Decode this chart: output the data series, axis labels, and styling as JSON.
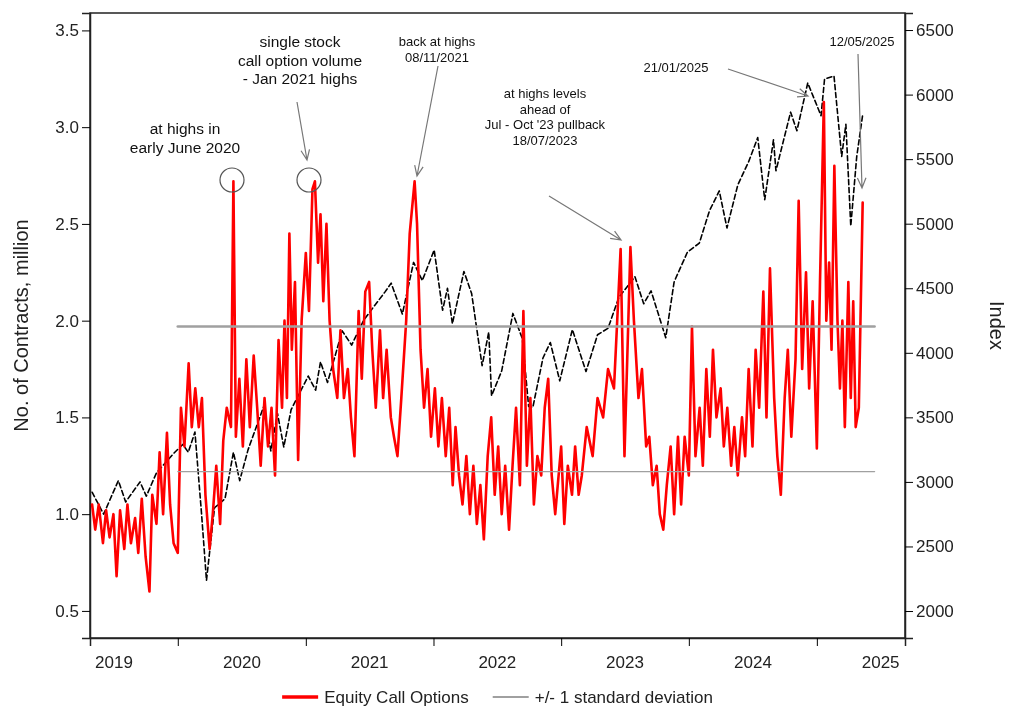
{
  "chart_data": {
    "type": "line",
    "ylabel": "No. of Contracts, million",
    "y2label": "Index",
    "xlim": [
      "2019-04-25",
      "2025-09-10"
    ],
    "xticks": [
      {
        "value": "2019-07-01",
        "label": "2019"
      },
      {
        "value": "2020-01-01",
        "label": null
      },
      {
        "value": "2020-07-01",
        "label": "2020"
      },
      {
        "value": "2021-01-01",
        "label": null
      },
      {
        "value": "2021-07-01",
        "label": "2021"
      },
      {
        "value": "2022-01-01",
        "label": null
      },
      {
        "value": "2022-07-01",
        "label": "2022"
      },
      {
        "value": "2023-01-01",
        "label": null
      },
      {
        "value": "2023-07-01",
        "label": "2023"
      },
      {
        "value": "2024-01-01",
        "label": null
      },
      {
        "value": "2024-07-01",
        "label": "2024"
      },
      {
        "value": "2025-01-01",
        "label": null
      },
      {
        "value": "2025-07-01",
        "label": "2025"
      }
    ],
    "ylim": [
      0.36,
      3.59
    ],
    "yticks": [
      0.5,
      {
        "value": 1,
        "label": "1.0"
      },
      1.5,
      {
        "value": 2,
        "label": "2.0"
      },
      2.5,
      {
        "value": 3,
        "label": "3.0"
      },
      3.5
    ],
    "y2lim": [
      1791,
      6632
    ],
    "y2ticks": [
      2000,
      2500,
      3000,
      3500,
      4000,
      4500,
      5000,
      5500,
      6000,
      6500
    ],
    "grid": false,
    "legend": "bottom",
    "series": [
      {
        "color": "#000000",
        "axis": "y2",
        "line_style": "dashed",
        "x": [
          "2019-05-01",
          "2019-06-03",
          "2019-07-15",
          "2019-08-05",
          "2019-09-15",
          "2019-10-03",
          "2019-11-01",
          "2019-12-20",
          "2020-01-15",
          "2020-01-31",
          "2020-02-19",
          "2020-03-09",
          "2020-03-23",
          "2020-04-15",
          "2020-05-15",
          "2020-06-08",
          "2020-06-26",
          "2020-07-20",
          "2020-09-02",
          "2020-09-23",
          "2020-10-12",
          "2020-10-30",
          "2020-11-20",
          "2021-01-08",
          "2021-01-29",
          "2021-02-12",
          "2021-03-04",
          "2021-04-15",
          "2021-05-12",
          "2021-06-15",
          "2021-07-15",
          "2021-08-15",
          "2021-09-02",
          "2021-10-04",
          "2021-11-05",
          "2021-11-30",
          "2022-01-03",
          "2022-01-27",
          "2022-02-10",
          "2022-02-24",
          "2022-03-29",
          "2022-04-20",
          "2022-05-20",
          "2022-06-08",
          "2022-06-16",
          "2022-07-15",
          "2022-08-16",
          "2022-09-12",
          "2022-09-30",
          "2022-10-12",
          "2022-11-10",
          "2022-12-01",
          "2022-12-28",
          "2023-02-02",
          "2023-03-13",
          "2023-04-15",
          "2023-05-15",
          "2023-06-15",
          "2023-07-31",
          "2023-08-25",
          "2023-09-15",
          "2023-10-27",
          "2023-11-20",
          "2023-12-28",
          "2024-01-31",
          "2024-02-29",
          "2024-03-28",
          "2024-04-19",
          "2024-05-20",
          "2024-06-20",
          "2024-07-16",
          "2024-08-05",
          "2024-08-30",
          "2024-09-06",
          "2024-10-18",
          "2024-11-05",
          "2024-12-06",
          "2025-01-13",
          "2025-01-23",
          "2025-02-19",
          "2025-03-13",
          "2025-03-25",
          "2025-04-08",
          "2025-04-25",
          "2025-05-12"
        ],
        "values": [
          2920,
          2750,
          3010,
          2845,
          3000,
          2890,
          3070,
          3220,
          3290,
          3230,
          3386,
          2750,
          2237,
          2800,
          2870,
          3230,
          3010,
          3250,
          3580,
          3240,
          3530,
          3270,
          3560,
          3820,
          3710,
          3930,
          3770,
          4170,
          4060,
          4250,
          4360,
          4470,
          4540,
          4300,
          4700,
          4560,
          4796,
          4330,
          4500,
          4225,
          4630,
          4460,
          3900,
          4160,
          3667,
          3860,
          4305,
          4110,
          3585,
          3577,
          3960,
          4080,
          3783,
          4180,
          3855,
          4140,
          4190,
          4430,
          4589,
          4380,
          4480,
          4117,
          4550,
          4780,
          4850,
          5100,
          5254,
          4967,
          5300,
          5480,
          5667,
          5186,
          5650,
          5410,
          5864,
          5720,
          6090,
          5836,
          6120,
          6144,
          5521,
          5770,
          4982,
          5520,
          5844
        ]
      },
      {
        "name": "Equity Call Options",
        "color": "#ff0000",
        "x": [
          "2019-05-01",
          "2019-05-10",
          "2019-05-20",
          "2019-06-01",
          "2019-06-10",
          "2019-06-20",
          "2019-07-01",
          "2019-07-10",
          "2019-07-20",
          "2019-08-01",
          "2019-08-10",
          "2019-08-20",
          "2019-09-01",
          "2019-09-10",
          "2019-09-20",
          "2019-10-01",
          "2019-10-12",
          "2019-10-20",
          "2019-11-01",
          "2019-11-10",
          "2019-11-20",
          "2019-12-01",
          "2019-12-10",
          "2019-12-20",
          "2020-01-01",
          "2020-01-10",
          "2020-01-20",
          "2020-02-01",
          "2020-02-10",
          "2020-02-20",
          "2020-03-01",
          "2020-03-10",
          "2020-03-20",
          "2020-04-01",
          "2020-04-10",
          "2020-04-20",
          "2020-05-01",
          "2020-05-10",
          "2020-05-20",
          "2020-06-01",
          "2020-06-08",
          "2020-06-15",
          "2020-06-25",
          "2020-07-05",
          "2020-07-15",
          "2020-07-25",
          "2020-08-05",
          "2020-08-15",
          "2020-08-25",
          "2020-09-05",
          "2020-09-15",
          "2020-09-25",
          "2020-10-05",
          "2020-10-15",
          "2020-10-25",
          "2020-11-01",
          "2020-11-08",
          "2020-11-15",
          "2020-11-22",
          "2020-12-01",
          "2020-12-10",
          "2020-12-20",
          "2021-01-01",
          "2021-01-10",
          "2021-01-20",
          "2021-01-27",
          "2021-02-05",
          "2021-02-12",
          "2021-02-20",
          "2021-03-01",
          "2021-03-10",
          "2021-03-20",
          "2021-04-01",
          "2021-04-10",
          "2021-04-20",
          "2021-05-01",
          "2021-05-10",
          "2021-05-20",
          "2021-06-01",
          "2021-06-10",
          "2021-06-20",
          "2021-07-01",
          "2021-07-10",
          "2021-07-20",
          "2021-08-01",
          "2021-08-10",
          "2021-08-20",
          "2021-09-01",
          "2021-09-10",
          "2021-09-20",
          "2021-10-01",
          "2021-10-15",
          "2021-10-25",
          "2021-11-08",
          "2021-11-15",
          "2021-11-25",
          "2021-12-05",
          "2021-12-15",
          "2021-12-25",
          "2022-01-05",
          "2022-01-15",
          "2022-01-25",
          "2022-02-05",
          "2022-02-15",
          "2022-02-25",
          "2022-03-05",
          "2022-03-15",
          "2022-03-25",
          "2022-04-05",
          "2022-04-15",
          "2022-04-25",
          "2022-05-05",
          "2022-05-15",
          "2022-05-25",
          "2022-06-05",
          "2022-06-15",
          "2022-06-25",
          "2022-07-05",
          "2022-07-15",
          "2022-07-25",
          "2022-08-05",
          "2022-08-15",
          "2022-08-25",
          "2022-09-05",
          "2022-09-15",
          "2022-09-25",
          "2022-10-05",
          "2022-10-15",
          "2022-10-25",
          "2022-11-05",
          "2022-11-15",
          "2022-11-25",
          "2022-12-05",
          "2022-12-15",
          "2023-01-01",
          "2023-01-10",
          "2023-01-20",
          "2023-02-01",
          "2023-02-10",
          "2023-02-20",
          "2023-03-01",
          "2023-03-15",
          "2023-04-01",
          "2023-04-15",
          "2023-05-01",
          "2023-05-15",
          "2023-06-01",
          "2023-06-20",
          "2023-07-01",
          "2023-07-18",
          "2023-07-28",
          "2023-08-10",
          "2023-08-20",
          "2023-09-01",
          "2023-09-10",
          "2023-09-20",
          "2023-10-01",
          "2023-10-10",
          "2023-10-20",
          "2023-10-30",
          "2023-11-10",
          "2023-11-20",
          "2023-12-01",
          "2023-12-10",
          "2023-12-20",
          "2024-01-01",
          "2024-01-10",
          "2024-01-20",
          "2024-02-01",
          "2024-02-10",
          "2024-02-20",
          "2024-03-01",
          "2024-03-10",
          "2024-03-20",
          "2024-04-01",
          "2024-04-10",
          "2024-04-20",
          "2024-05-01",
          "2024-05-10",
          "2024-05-20",
          "2024-06-01",
          "2024-06-10",
          "2024-06-20",
          "2024-07-01",
          "2024-07-10",
          "2024-07-20",
          "2024-08-01",
          "2024-08-10",
          "2024-08-20",
          "2024-09-01",
          "2024-09-10",
          "2024-09-20",
          "2024-10-01",
          "2024-10-10",
          "2024-10-20",
          "2024-11-01",
          "2024-11-10",
          "2024-11-20",
          "2024-12-01",
          "2024-12-10",
          "2024-12-20",
          "2025-01-01",
          "2025-01-10",
          "2025-01-21",
          "2025-01-28",
          "2025-02-05",
          "2025-02-12",
          "2025-02-20",
          "2025-03-01",
          "2025-03-08",
          "2025-03-15",
          "2025-03-22",
          "2025-04-01",
          "2025-04-08",
          "2025-04-15",
          "2025-04-22",
          "2025-05-01",
          "2025-05-12"
        ],
        "values": [
          1.05,
          0.92,
          1.05,
          0.85,
          1.02,
          0.88,
          1.0,
          0.68,
          1.02,
          0.82,
          1.05,
          0.85,
          0.98,
          0.8,
          1.08,
          0.78,
          0.6,
          1.1,
          0.95,
          1.32,
          1.0,
          1.42,
          1.05,
          0.85,
          0.8,
          1.55,
          1.35,
          1.78,
          1.45,
          1.65,
          1.45,
          1.6,
          1.1,
          0.82,
          1.0,
          1.25,
          0.95,
          1.38,
          1.55,
          1.45,
          2.72,
          1.4,
          1.7,
          1.35,
          1.8,
          1.45,
          1.82,
          1.55,
          1.25,
          1.6,
          1.35,
          1.55,
          1.2,
          1.9,
          1.55,
          2.0,
          1.6,
          2.45,
          1.85,
          2.2,
          1.28,
          2.0,
          2.35,
          2.05,
          2.68,
          2.72,
          2.3,
          2.55,
          2.1,
          2.5,
          2.0,
          1.75,
          1.6,
          1.95,
          1.6,
          1.75,
          1.5,
          1.3,
          2.05,
          1.7,
          2.15,
          2.2,
          1.85,
          1.55,
          1.95,
          1.6,
          1.85,
          1.5,
          1.4,
          1.3,
          1.6,
          2.0,
          2.45,
          2.72,
          2.5,
          1.85,
          1.55,
          1.75,
          1.4,
          1.65,
          1.35,
          1.6,
          1.3,
          1.55,
          1.15,
          1.45,
          1.2,
          1.05,
          1.3,
          1.0,
          1.25,
          0.95,
          1.15,
          0.87,
          1.3,
          1.5,
          1.1,
          1.35,
          1.0,
          1.25,
          0.92,
          1.25,
          1.55,
          1.15,
          2.05,
          1.25,
          1.6,
          1.05,
          1.3,
          1.2,
          1.55,
          1.7,
          1.2,
          1.0,
          1.35,
          0.95,
          1.25,
          1.1,
          1.35,
          1.1,
          1.2,
          1.45,
          1.3,
          1.6,
          1.5,
          1.75,
          1.65,
          2.37,
          1.3,
          2.38,
          2.0,
          1.6,
          1.75,
          1.35,
          1.4,
          1.15,
          1.25,
          1.0,
          0.92,
          1.15,
          1.35,
          1.0,
          1.4,
          1.05,
          1.4,
          1.2,
          1.97,
          1.3,
          1.55,
          1.25,
          1.75,
          1.4,
          1.85,
          1.5,
          1.65,
          1.35,
          1.55,
          1.25,
          1.45,
          1.2,
          1.5,
          1.3,
          1.75,
          1.35,
          1.85,
          1.55,
          2.15,
          1.5,
          2.27,
          1.6,
          1.3,
          1.1,
          1.6,
          1.85,
          1.4,
          1.8,
          2.62,
          1.75,
          2.25,
          1.65,
          2.1,
          1.34,
          2.2,
          3.13,
          2.0,
          2.3,
          1.85,
          2.8,
          2.0,
          1.65,
          2.0,
          1.45,
          2.2,
          1.6,
          2.1,
          1.45,
          1.55,
          2.61
        ]
      },
      {
        "name": "+/- 1 standard deviation",
        "color": "#a0a0a0",
        "x": [
          "2020-01-01",
          "2025-06-15"
        ],
        "values": [
          1.97,
          1.97
        ]
      },
      {
        "color": "#a0a0a0",
        "x": [
          "2020-01-01",
          "2025-06-15"
        ],
        "values": [
          1.22,
          1.22
        ]
      }
    ],
    "annotations": [
      "at highs in\nearly June 2020",
      "single stock\ncall option volume\n- Jan 2021 highs",
      "back at highs\n08/11/2021",
      "at highs levels\nahead of\nJul - Oct '23 pullback\n18/07/2023",
      "21/01/2025",
      "12/05/2025"
    ]
  }
}
